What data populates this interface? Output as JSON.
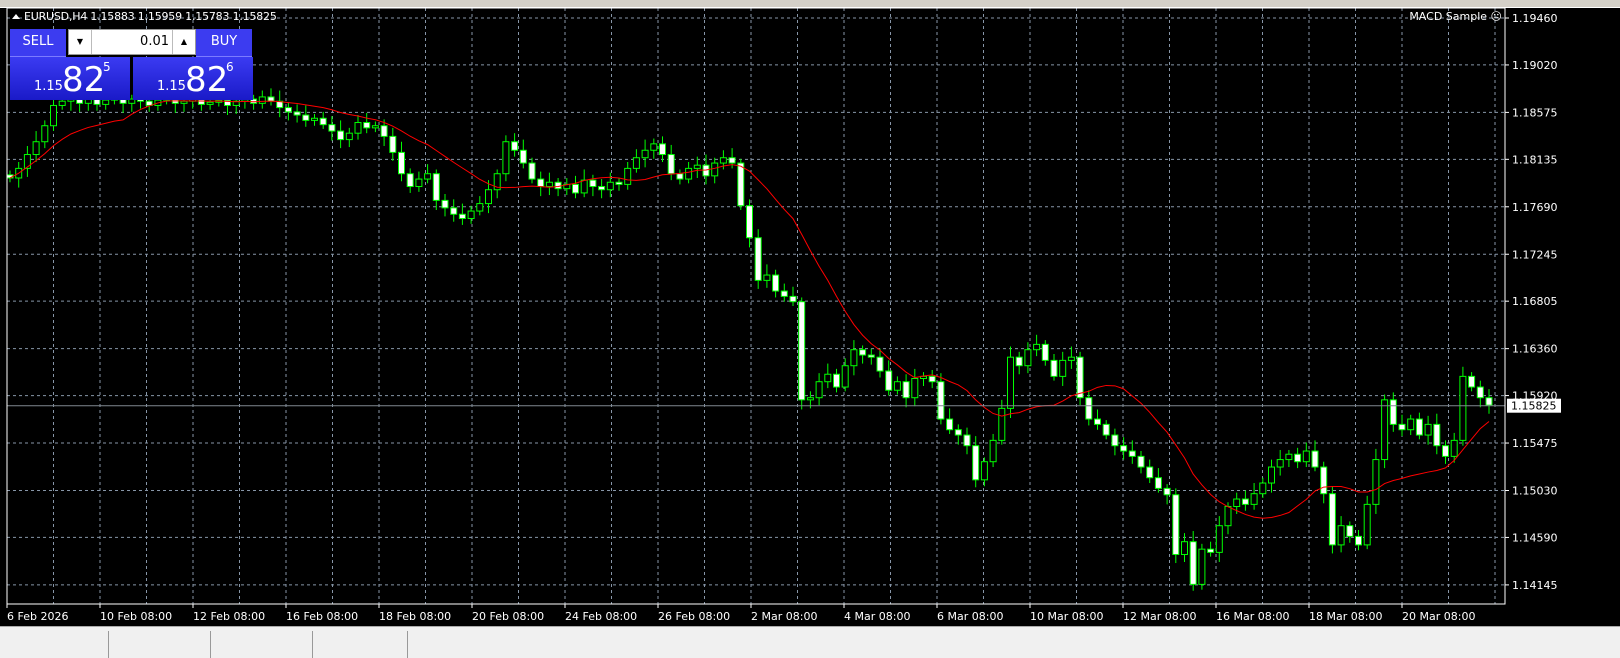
{
  "header": {
    "symbol_line": "EURUSD,H4  1.15883 1.15959 1.15783 1.15825",
    "ea_name": "MACD Sample",
    "ea_icon": "frown-face-icon"
  },
  "trade_panel": {
    "sell_label": "SELL",
    "buy_label": "BUY",
    "lot": "0.01",
    "bid": {
      "prefix": "1.15",
      "big": "82",
      "sup": "5"
    },
    "ask": {
      "prefix": "1.15",
      "big": "82",
      "sup": "6"
    },
    "colors": {
      "button": "#3c3cf0"
    }
  },
  "colors": {
    "background": "#000000",
    "grid": "#8796a8",
    "candle_outline": "#00ff00",
    "bull_body": "#000000",
    "bear_body": "#ffffff",
    "ma_line": "#ff0000",
    "bid_line": "#808890"
  },
  "chart_data": {
    "type": "candlestick",
    "symbol": "EURUSD",
    "timeframe": "H4",
    "current_price": 1.15825,
    "ylim": [
      1.1409,
      1.1955
    ],
    "y_ticks": [
      "1.19460",
      "1.19020",
      "1.18575",
      "1.18135",
      "1.17690",
      "1.17245",
      "1.16805",
      "1.16360",
      "1.15920",
      "1.15475",
      "1.15030",
      "1.14590",
      "1.14145"
    ],
    "x_ticks": [
      "6 Feb 2026",
      "10 Feb 08:00",
      "12 Feb 08:00",
      "16 Feb 08:00",
      "18 Feb 08:00",
      "20 Feb 08:00",
      "24 Feb 08:00",
      "26 Feb 08:00",
      "2 Mar 08:00",
      "4 Mar 08:00",
      "6 Mar 08:00",
      "10 Mar 08:00",
      "12 Mar 08:00",
      "16 Mar 08:00",
      "18 Mar 08:00",
      "20 Mar 08:00"
    ],
    "grid": true,
    "closes": [
      1.1796,
      1.1805,
      1.1818,
      1.183,
      1.1845,
      1.1864,
      1.1868,
      1.1872,
      1.1866,
      1.187,
      1.1865,
      1.1869,
      1.1873,
      1.1866,
      1.187,
      1.1868,
      1.1864,
      1.1869,
      1.1871,
      1.1866,
      1.1868,
      1.187,
      1.1865,
      1.1867,
      1.1869,
      1.1864,
      1.1868,
      1.187,
      1.1866,
      1.1872,
      1.1868,
      1.1862,
      1.1858,
      1.1855,
      1.185,
      1.1852,
      1.1846,
      1.184,
      1.1832,
      1.1838,
      1.1848,
      1.1843,
      1.1845,
      1.1835,
      1.182,
      1.18,
      1.1788,
      1.1795,
      1.18,
      1.1775,
      1.1768,
      1.1762,
      1.1758,
      1.1765,
      1.1772,
      1.1785,
      1.18,
      1.183,
      1.1822,
      1.181,
      1.1795,
      1.1788,
      1.1792,
      1.1786,
      1.179,
      1.1782,
      1.1794,
      1.1788,
      1.1785,
      1.1792,
      1.179,
      1.1805,
      1.1815,
      1.1822,
      1.1828,
      1.1818,
      1.18,
      1.1795,
      1.1805,
      1.1808,
      1.1798,
      1.181,
      1.1815,
      1.181,
      1.177,
      1.174,
      1.17,
      1.1705,
      1.169,
      1.1685,
      1.168,
      1.1588,
      1.159,
      1.1605,
      1.1612,
      1.16,
      1.162,
      1.1635,
      1.163,
      1.1628,
      1.1615,
      1.1597,
      1.1605,
      1.159,
      1.1608,
      1.161,
      1.1605,
      1.157,
      1.156,
      1.1555,
      1.1545,
      1.1513,
      1.153,
      1.155,
      1.158,
      1.1628,
      1.162,
      1.1635,
      1.164,
      1.1625,
      1.161,
      1.1625,
      1.1628,
      1.159,
      1.157,
      1.1565,
      1.1555,
      1.1545,
      1.154,
      1.1535,
      1.1525,
      1.1515,
      1.1505,
      1.1499,
      1.1443,
      1.1455,
      1.1415,
      1.1448,
      1.1445,
      1.147,
      1.1488,
      1.1495,
      1.149,
      1.15,
      1.151,
      1.1525,
      1.1532,
      1.1537,
      1.153,
      1.154,
      1.1525,
      1.15,
      1.1452,
      1.147,
      1.146,
      1.1452,
      1.149,
      1.1532,
      1.1588,
      1.1565,
      1.156,
      1.157,
      1.1555,
      1.1565,
      1.1545,
      1.1535,
      1.155,
      1.161,
      1.16,
      1.159,
      1.1583
    ]
  }
}
